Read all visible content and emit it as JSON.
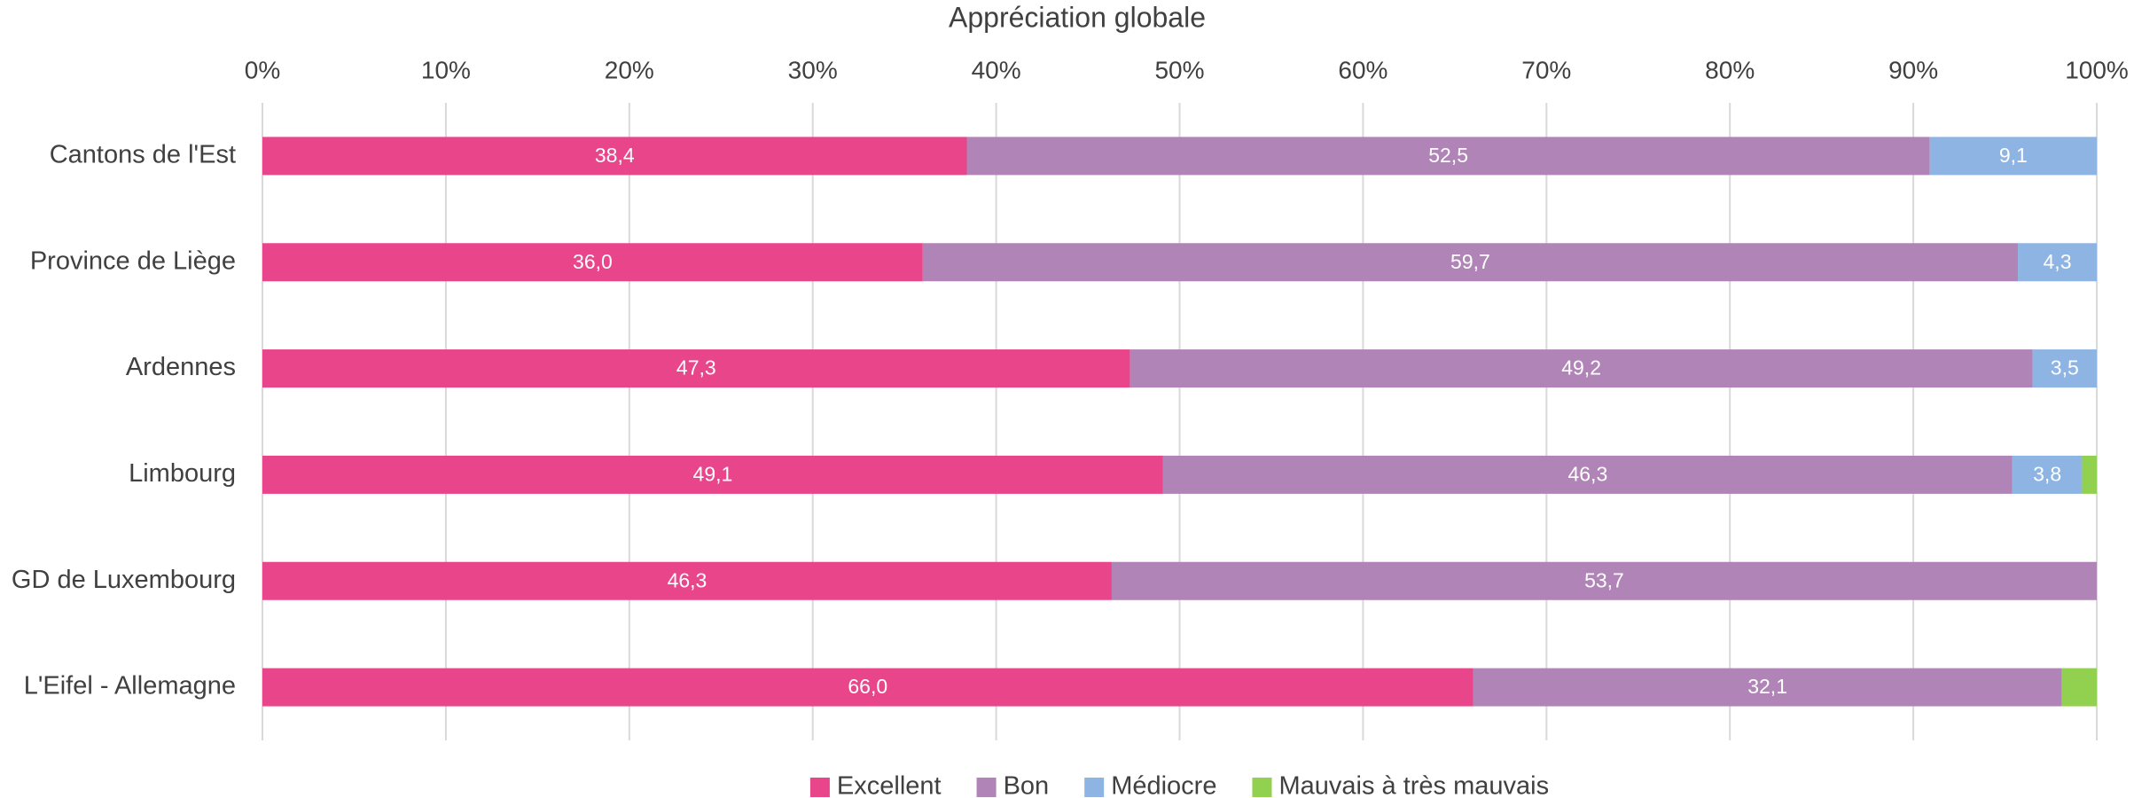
{
  "chart_data": {
    "type": "stacked_barh",
    "title": "Appréciation globale",
    "categories": [
      "Cantons de l'Est",
      "Province de Liège",
      "Ardennes",
      "Limbourg",
      "GD de Luxembourg",
      "L'Eifel - Allemagne"
    ],
    "series": [
      {
        "name": "Excellent",
        "color": "#e8458b",
        "values": [
          38.4,
          36.0,
          47.3,
          49.1,
          46.3,
          66.0
        ],
        "value_labels": [
          "38,4",
          "36,0",
          "47,3",
          "49,1",
          "46,3",
          "66,0"
        ]
      },
      {
        "name": "Bon",
        "color": "#b084b6",
        "values": [
          52.5,
          59.7,
          49.2,
          46.3,
          53.7,
          32.1
        ],
        "value_labels": [
          "52,5",
          "59,7",
          "49,2",
          "46,3",
          "53,7",
          "32,1"
        ]
      },
      {
        "name": "Médiocre",
        "color": "#8db4e2",
        "values": [
          9.1,
          4.3,
          3.5,
          3.8,
          0,
          0
        ],
        "value_labels": [
          "9,1",
          "4,3",
          "3,5",
          "3,8",
          null,
          null
        ]
      },
      {
        "name": "Mauvais à très mauvais",
        "color": "#92d050",
        "values": [
          0,
          0,
          0,
          0.8,
          0,
          1.9
        ],
        "value_labels": [
          null,
          null,
          null,
          null,
          null,
          null
        ]
      }
    ],
    "xlim": [
      0,
      100
    ],
    "xticks": [
      {
        "value": 0,
        "label": "0%"
      },
      {
        "value": 10,
        "label": "10%"
      },
      {
        "value": 20,
        "label": "20%"
      },
      {
        "value": 30,
        "label": "30%"
      },
      {
        "value": 40,
        "label": "40%"
      },
      {
        "value": 50,
        "label": "50%"
      },
      {
        "value": 60,
        "label": "60%"
      },
      {
        "value": 70,
        "label": "70%"
      },
      {
        "value": 80,
        "label": "80%"
      },
      {
        "value": 90,
        "label": "90%"
      },
      {
        "value": 100,
        "label": "100%"
      }
    ],
    "grid": true,
    "legend": "bottom"
  }
}
